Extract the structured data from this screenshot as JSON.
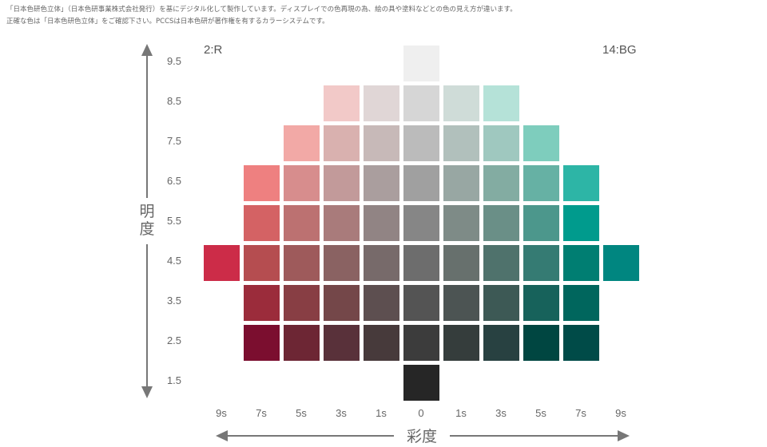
{
  "notes": {
    "line1": "「日本色研色立体」（日本色研事業株式会社発行）を基にデジタル化して製作しています。ディスプレイでの色再現の為、絵の具や塗料などとの色の見え方が違います。",
    "line2": "正確な色は「日本色研色立体」をご確認下さい。PCCSは日本色研が著作権を有するカラーシステムです。"
  },
  "hue_labels": {
    "left": "2:R",
    "right": "14:BG"
  },
  "axis": {
    "lightness_title": "明度",
    "saturation_title": "彩度"
  },
  "lightness_values": [
    "9.5",
    "8.5",
    "7.5",
    "6.5",
    "5.5",
    "4.5",
    "3.5",
    "2.5",
    "1.5"
  ],
  "saturation_labels": [
    "9s",
    "7s",
    "5s",
    "3s",
    "1s",
    "0",
    "1s",
    "3s",
    "5s",
    "7s",
    "9s"
  ],
  "colors": {
    "axis_line": "#777777"
  },
  "chips": [
    {
      "row": 0,
      "col": 5,
      "color": "#efefef"
    },
    {
      "row": 1,
      "col": 3,
      "color": "#f2c9c8"
    },
    {
      "row": 1,
      "col": 4,
      "color": "#e0d6d6"
    },
    {
      "row": 1,
      "col": 5,
      "color": "#d6d6d6"
    },
    {
      "row": 1,
      "col": 6,
      "color": "#cfdcd8"
    },
    {
      "row": 1,
      "col": 7,
      "color": "#b5e2d8"
    },
    {
      "row": 2,
      "col": 2,
      "color": "#f2a9a6"
    },
    {
      "row": 2,
      "col": 3,
      "color": "#d9b1af"
    },
    {
      "row": 2,
      "col": 4,
      "color": "#c7b9b8"
    },
    {
      "row": 2,
      "col": 5,
      "color": "#bbbbbb"
    },
    {
      "row": 2,
      "col": 6,
      "color": "#b1c0bc"
    },
    {
      "row": 2,
      "col": 7,
      "color": "#9fc8bf"
    },
    {
      "row": 2,
      "col": 8,
      "color": "#7ecdbd"
    },
    {
      "row": 3,
      "col": 1,
      "color": "#ee8080"
    },
    {
      "row": 3,
      "col": 2,
      "color": "#d78d8d"
    },
    {
      "row": 3,
      "col": 3,
      "color": "#c29a9a"
    },
    {
      "row": 3,
      "col": 4,
      "color": "#aa9e9e"
    },
    {
      "row": 3,
      "col": 5,
      "color": "#a0a0a0"
    },
    {
      "row": 3,
      "col": 6,
      "color": "#98a7a3"
    },
    {
      "row": 3,
      "col": 7,
      "color": "#83aca2"
    },
    {
      "row": 3,
      "col": 8,
      "color": "#66b1a4"
    },
    {
      "row": 3,
      "col": 9,
      "color": "#2db5a6"
    },
    {
      "row": 4,
      "col": 1,
      "color": "#d46264"
    },
    {
      "row": 4,
      "col": 2,
      "color": "#bc7171"
    },
    {
      "row": 4,
      "col": 3,
      "color": "#a97b7b"
    },
    {
      "row": 4,
      "col": 4,
      "color": "#918484"
    },
    {
      "row": 4,
      "col": 5,
      "color": "#868686"
    },
    {
      "row": 4,
      "col": 6,
      "color": "#7e8b87"
    },
    {
      "row": 4,
      "col": 7,
      "color": "#6a8f87"
    },
    {
      "row": 4,
      "col": 8,
      "color": "#4c978c"
    },
    {
      "row": 4,
      "col": 9,
      "color": "#009b8d"
    },
    {
      "row": 5,
      "col": 0,
      "color": "#cc2c48"
    },
    {
      "row": 5,
      "col": 1,
      "color": "#b54d50"
    },
    {
      "row": 5,
      "col": 2,
      "color": "#9e5a5b"
    },
    {
      "row": 5,
      "col": 3,
      "color": "#8a6262"
    },
    {
      "row": 5,
      "col": 4,
      "color": "#776a6a"
    },
    {
      "row": 5,
      "col": 5,
      "color": "#6d6d6d"
    },
    {
      "row": 5,
      "col": 6,
      "color": "#67706d"
    },
    {
      "row": 5,
      "col": 7,
      "color": "#4f726c"
    },
    {
      "row": 5,
      "col": 8,
      "color": "#357b73"
    },
    {
      "row": 5,
      "col": 9,
      "color": "#007e72"
    },
    {
      "row": 5,
      "col": 10,
      "color": "#008680"
    },
    {
      "row": 6,
      "col": 1,
      "color": "#9b2c3b"
    },
    {
      "row": 6,
      "col": 2,
      "color": "#883e44"
    },
    {
      "row": 6,
      "col": 3,
      "color": "#744749"
    },
    {
      "row": 6,
      "col": 4,
      "color": "#5d4f50"
    },
    {
      "row": 6,
      "col": 5,
      "color": "#545454"
    },
    {
      "row": 6,
      "col": 6,
      "color": "#4c5453"
    },
    {
      "row": 6,
      "col": 7,
      "color": "#3d5955"
    },
    {
      "row": 6,
      "col": 8,
      "color": "#17625b"
    },
    {
      "row": 6,
      "col": 9,
      "color": "#00665d"
    },
    {
      "row": 7,
      "col": 1,
      "color": "#7b0e2f"
    },
    {
      "row": 7,
      "col": 2,
      "color": "#6d2634"
    },
    {
      "row": 7,
      "col": 3,
      "color": "#59313a"
    },
    {
      "row": 7,
      "col": 4,
      "color": "#473a3b"
    },
    {
      "row": 7,
      "col": 5,
      "color": "#3c3c3c"
    },
    {
      "row": 7,
      "col": 6,
      "color": "#353d3c"
    },
    {
      "row": 7,
      "col": 7,
      "color": "#284141"
    },
    {
      "row": 7,
      "col": 8,
      "color": "#004641"
    },
    {
      "row": 7,
      "col": 9,
      "color": "#004b48"
    },
    {
      "row": 8,
      "col": 5,
      "color": "#262626"
    }
  ]
}
